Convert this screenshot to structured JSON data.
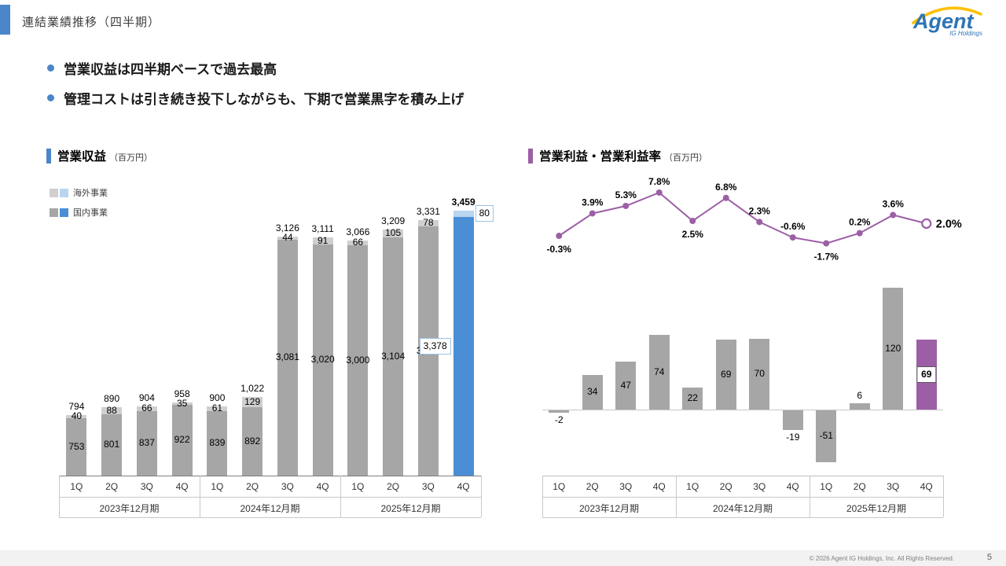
{
  "page": {
    "title": "連結業績推移（四半期）",
    "bullet_1": "営業収益は四半期ベースで過去最高",
    "bullet_2": "管理コストは引き続き投下しながらも、下期で営業黒字を積み上げ",
    "footer": "© 2026 Agent IG Holdings, Inc. All Rights Reserved.",
    "page_number": "5",
    "logo_text": "Agent",
    "logo_subtext": "IG Holdings"
  },
  "colors": {
    "accent_blue": "#4a86c8",
    "accent_purple": "#9c5fa5",
    "bar_gray": "#a6a6a6",
    "overseas_gray": "#cfcfcf",
    "highlight_blue": "#4a8ed5",
    "highlight_light_blue": "#b9d5ef",
    "purple": "#9c5fa5",
    "box_border_blue": "#9dc3e6"
  },
  "chart_data": [
    {
      "type": "bar",
      "stacked": true,
      "title": "営業収益",
      "unit": "（百万円）",
      "legend": [
        {
          "label": "海外事業",
          "swatches": [
            "#cfcfcf",
            "#b9d5ef"
          ]
        },
        {
          "label": "国内事業",
          "swatches": [
            "#a6a6a6",
            "#4a8ed5"
          ]
        }
      ],
      "categories": [
        "1Q",
        "2Q",
        "3Q",
        "4Q",
        "1Q",
        "2Q",
        "3Q",
        "4Q",
        "1Q",
        "2Q",
        "3Q",
        "4Q"
      ],
      "groups": [
        "2023年12月期",
        "2024年12月期",
        "2025年12月期"
      ],
      "series": [
        {
          "name": "国内事業",
          "values": [
            753,
            801,
            837,
            922,
            839,
            892,
            3081,
            3020,
            3000,
            3104,
            3252,
            3378
          ]
        },
        {
          "name": "海外事業",
          "values": [
            40,
            88,
            66,
            35,
            61,
            129,
            44,
            91,
            66,
            105,
            78,
            80
          ]
        }
      ],
      "total_labels": [
        "794",
        "890",
        "904",
        "958",
        "900",
        "1,022",
        "3,126",
        "3,111",
        "3,066",
        "3,209",
        "3,331",
        "3,459"
      ],
      "domestic_labels": [
        "753",
        "801",
        "837",
        "922",
        "839",
        "892",
        "3,081",
        "3,020",
        "3,000",
        "3,104",
        "3,252",
        "3,378"
      ],
      "overseas_labels": [
        "40",
        "88",
        "66",
        "35",
        "61",
        "129",
        "44",
        "91",
        "66",
        "105",
        "78",
        "80"
      ],
      "highlight_index": 11
    },
    {
      "type": "bar+line",
      "title": "営業利益・営業利益率",
      "unit": "（百万円）",
      "categories": [
        "1Q",
        "2Q",
        "3Q",
        "4Q",
        "1Q",
        "2Q",
        "3Q",
        "4Q",
        "1Q",
        "2Q",
        "3Q",
        "4Q"
      ],
      "groups": [
        "2023年12月期",
        "2024年12月期",
        "2025年12月期"
      ],
      "bar_series": {
        "name": "営業利益",
        "values": [
          -2,
          34,
          47,
          74,
          22,
          69,
          70,
          -19,
          -51,
          6,
          120,
          69
        ]
      },
      "line_series": {
        "name": "営業利益率",
        "values": [
          -0.3,
          3.9,
          5.3,
          7.8,
          2.5,
          6.8,
          2.3,
          -0.6,
          -1.7,
          0.2,
          3.6,
          2.0
        ],
        "labels": [
          "-0.3%",
          "3.9%",
          "5.3%",
          "7.8%",
          "2.5%",
          "6.8%",
          "2.3%",
          "-0.6%",
          "-1.7%",
          "0.2%",
          "3.6%",
          "2.0%"
        ],
        "label_pos": [
          "below",
          "above",
          "above",
          "above",
          "below",
          "above",
          "above",
          "above",
          "below",
          "above",
          "above",
          "right"
        ]
      },
      "highlight_index": 11
    }
  ]
}
